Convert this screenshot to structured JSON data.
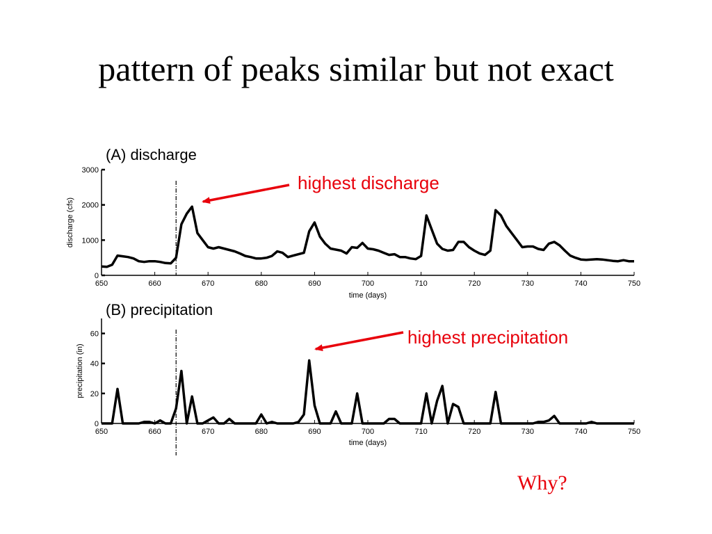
{
  "slide": {
    "title": "pattern of peaks similar but not exact",
    "why": "Why?"
  },
  "colors": {
    "accent": "#e8000b",
    "line": "#000000"
  },
  "chart_data": [
    {
      "type": "line",
      "title": "(A) discharge",
      "xlabel": "time (days)",
      "ylabel": "discharge (cfs)",
      "xlim": [
        650,
        750
      ],
      "ylim": [
        0,
        3000
      ],
      "xticks": [
        650,
        660,
        670,
        680,
        690,
        700,
        710,
        720,
        730,
        740,
        750
      ],
      "yticks": [
        0,
        1000,
        2000,
        3000
      ],
      "vline": 664,
      "annotation": {
        "text": "highest discharge",
        "x": 668,
        "y": 1950
      },
      "series": [
        {
          "x": [
            650,
            651,
            652,
            653,
            654,
            655,
            656,
            657,
            658,
            659,
            660,
            661,
            662,
            663,
            664,
            665,
            666,
            667,
            668,
            669,
            670,
            671,
            672,
            673,
            674,
            675,
            676,
            677,
            678,
            679,
            680,
            681,
            682,
            683,
            684,
            685,
            686,
            687,
            688,
            689,
            690,
            691,
            692,
            693,
            694,
            695,
            696,
            697,
            698,
            699,
            700,
            701,
            702,
            703,
            704,
            705,
            706,
            707,
            708,
            709,
            710,
            711,
            712,
            713,
            714,
            715,
            716,
            717,
            718,
            719,
            720,
            721,
            722,
            723,
            724,
            725,
            726,
            727,
            728,
            729,
            730,
            731,
            732,
            733,
            734,
            735,
            736,
            737,
            738,
            739,
            740,
            741,
            742,
            743,
            744,
            745,
            746,
            747,
            748,
            749,
            750
          ],
          "y": [
            250,
            240,
            300,
            560,
            540,
            520,
            480,
            400,
            380,
            400,
            400,
            380,
            350,
            340,
            500,
            1450,
            1750,
            1950,
            1200,
            1000,
            800,
            760,
            800,
            760,
            720,
            680,
            620,
            550,
            520,
            480,
            480,
            500,
            550,
            680,
            640,
            520,
            560,
            600,
            640,
            1250,
            1500,
            1100,
            900,
            760,
            730,
            700,
            620,
            800,
            780,
            920,
            760,
            740,
            700,
            640,
            580,
            600,
            520,
            520,
            480,
            460,
            550,
            1700,
            1300,
            900,
            750,
            700,
            720,
            950,
            950,
            800,
            700,
            620,
            580,
            700,
            1850,
            1700,
            1400,
            1200,
            1000,
            800,
            820,
            820,
            750,
            720,
            900,
            950,
            850,
            700,
            560,
            500,
            450,
            440,
            450,
            460,
            450,
            430,
            410,
            400,
            430,
            400,
            400
          ]
        }
      ]
    },
    {
      "type": "line",
      "title": "(B) precipitation",
      "xlabel": "time (days)",
      "ylabel": "precipitation (in)",
      "xlim": [
        650,
        750
      ],
      "ylim": [
        0,
        70
      ],
      "xticks": [
        650,
        660,
        670,
        680,
        690,
        700,
        710,
        720,
        730,
        740,
        750
      ],
      "yticks": [
        0,
        20,
        40,
        60
      ],
      "vline": 664,
      "annotation": {
        "text": "highest precipitation",
        "x": 689,
        "y": 42
      },
      "series": [
        {
          "x": [
            650,
            651,
            652,
            653,
            654,
            655,
            656,
            657,
            658,
            659,
            660,
            661,
            662,
            663,
            664,
            665,
            666,
            667,
            668,
            669,
            670,
            671,
            672,
            673,
            674,
            675,
            676,
            677,
            678,
            679,
            680,
            681,
            682,
            683,
            684,
            685,
            686,
            687,
            688,
            689,
            690,
            691,
            692,
            693,
            694,
            695,
            696,
            697,
            698,
            699,
            700,
            701,
            702,
            703,
            704,
            705,
            706,
            707,
            708,
            709,
            710,
            711,
            712,
            713,
            714,
            715,
            716,
            717,
            718,
            719,
            720,
            721,
            722,
            723,
            724,
            725,
            726,
            727,
            728,
            729,
            730,
            731,
            732,
            733,
            734,
            735,
            736,
            737,
            738,
            739,
            740,
            741,
            742,
            743,
            744,
            745,
            746,
            747,
            748,
            749,
            750
          ],
          "y": [
            0,
            0,
            0,
            23,
            0,
            0,
            0,
            0,
            1,
            1,
            0,
            2,
            0,
            0,
            10,
            35,
            0,
            18,
            0,
            0,
            2,
            4,
            0,
            0,
            3,
            0,
            0,
            0,
            0,
            0,
            6,
            0,
            1,
            0,
            0,
            0,
            0,
            1,
            6,
            42,
            12,
            0,
            0,
            0,
            8,
            0,
            0,
            0,
            20,
            0,
            0,
            0,
            0,
            0,
            3,
            3,
            0,
            0,
            0,
            0,
            0,
            20,
            0,
            15,
            25,
            0,
            13,
            11,
            0,
            0,
            0,
            0,
            0,
            0,
            21,
            0,
            0,
            0,
            0,
            0,
            0,
            0,
            1,
            1,
            2,
            5,
            0,
            0,
            0,
            0,
            0,
            0,
            1,
            0,
            0,
            0,
            0,
            0,
            0,
            0,
            0
          ]
        }
      ]
    }
  ]
}
